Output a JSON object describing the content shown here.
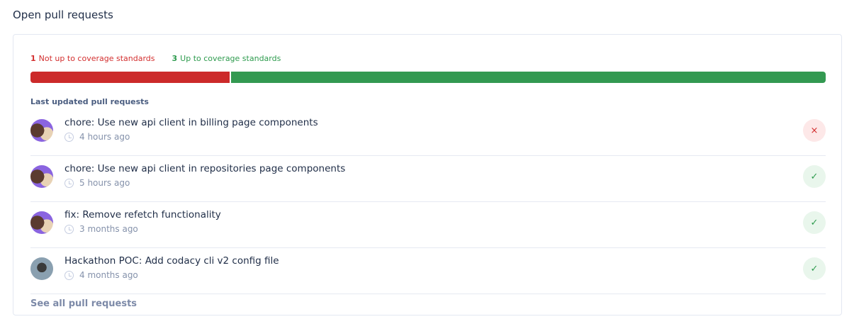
{
  "title": "Open pull requests",
  "coverage": {
    "not_count": "1",
    "not_label": "Not up to coverage standards",
    "up_count": "3",
    "up_label": "Up to coverage standards",
    "colors": {
      "bad": "#cc2a2a",
      "good": "#339951"
    }
  },
  "list_title": "Last updated pull requests",
  "pull_requests": [
    {
      "title": "chore: Use new api client in billing page components",
      "time": "4 hours ago",
      "status": "fail",
      "icon": "×"
    },
    {
      "title": "chore: Use new api client in repositories page components",
      "time": "5 hours ago",
      "status": "pass",
      "icon": "✓"
    },
    {
      "title": "fix: Remove refetch functionality",
      "time": "3 months ago",
      "status": "pass",
      "icon": "✓"
    },
    {
      "title": "Hackathon POC: Add codacy cli v2 config file",
      "time": "4 months ago",
      "status": "pass",
      "icon": "✓"
    }
  ],
  "see_all": "See all pull requests"
}
